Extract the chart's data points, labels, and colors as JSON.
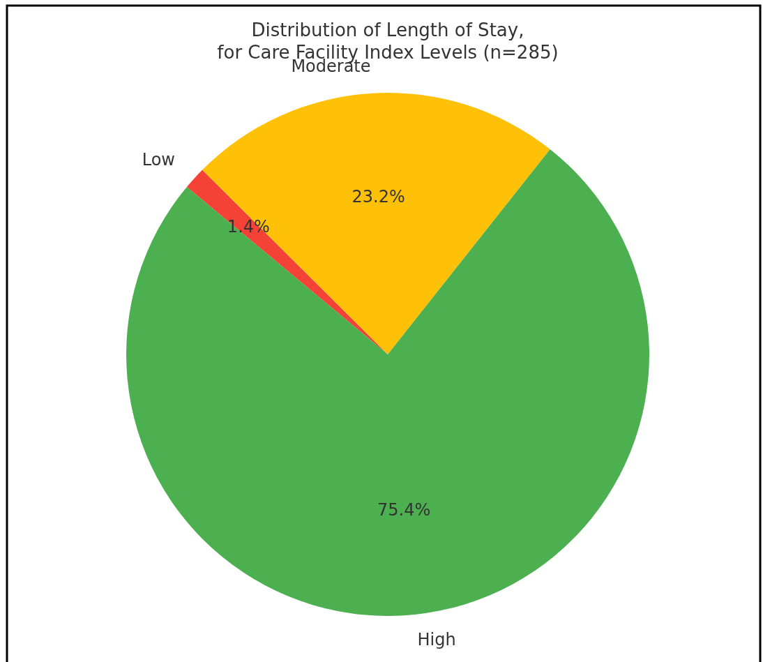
{
  "chart_data": {
    "type": "pie",
    "title": "Distribution of Length of Stay,\nfor Care Facility Index Levels (n=285)",
    "categories": [
      "Low",
      "Moderate",
      "High"
    ],
    "values": [
      1.4,
      23.2,
      75.4
    ],
    "colors": [
      "#f44336",
      "#ffc107",
      "#4caf50"
    ],
    "value_labels": [
      "1.4%",
      "23.2%",
      "75.4%"
    ]
  }
}
